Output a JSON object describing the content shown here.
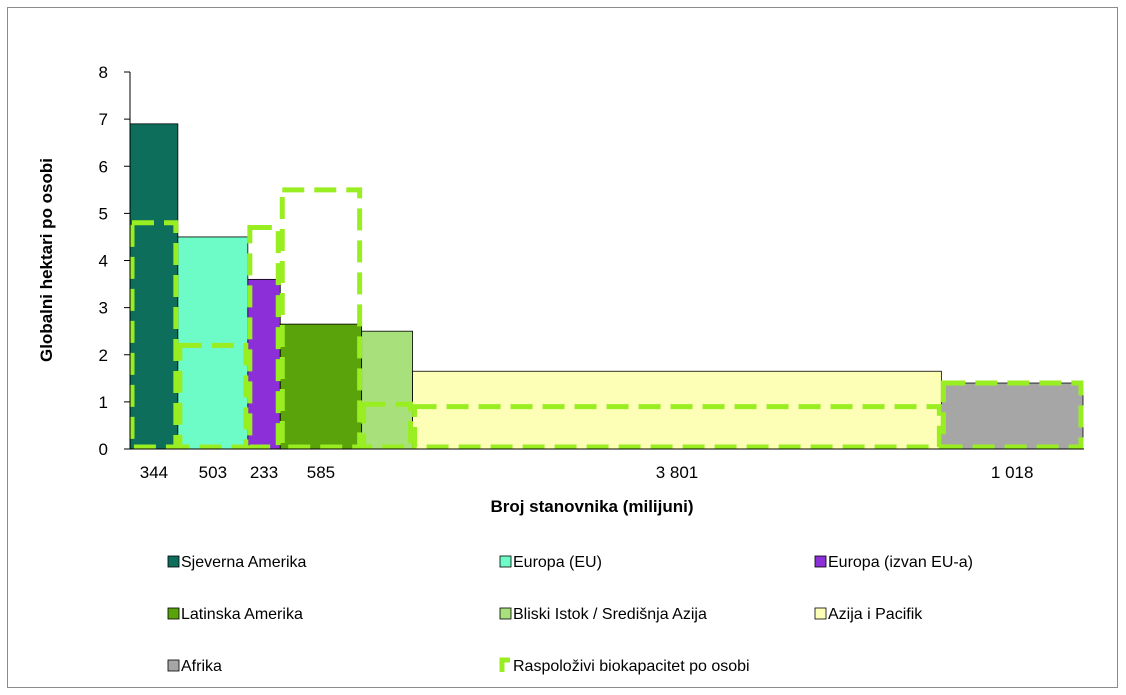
{
  "chart_data": {
    "type": "bar",
    "subtype": "variable-width",
    "ylabel": "Globalni hektari po osobi",
    "xlabel": "Broj stanovnika (milijuni)",
    "ylim": [
      0,
      8
    ],
    "yticks": [
      "0",
      "1",
      "2",
      "3",
      "4",
      "5",
      "6",
      "7",
      "8"
    ],
    "grid": false,
    "legend_position": "bottom",
    "series": [
      {
        "name": "Sjeverna Amerika",
        "population": 344,
        "population_label": "344",
        "footprint": 6.9,
        "biocapacity": 4.8,
        "color": "#0d6e5c"
      },
      {
        "name": "Europa (EU)",
        "population": 503,
        "population_label": "503",
        "footprint": 4.5,
        "biocapacity": 2.2,
        "color": "#6dfcc8"
      },
      {
        "name": "Europa (izvan EU-a)",
        "population": 233,
        "population_label": "233",
        "footprint": 3.6,
        "biocapacity": 4.7,
        "color": "#8c2fd9"
      },
      {
        "name": "Latinska Amerika",
        "population": 585,
        "population_label": "585",
        "footprint": 2.65,
        "biocapacity": 5.5,
        "color": "#5aa30a"
      },
      {
        "name": "Bliski Istok / Središnja Azija",
        "population": 366,
        "population_label": "",
        "footprint": 2.5,
        "biocapacity": 0.95,
        "color": "#a8e07c"
      },
      {
        "name": "Azija i Pacifik",
        "population": 3801,
        "population_label": "3 801",
        "footprint": 1.65,
        "biocapacity": 0.9,
        "color": "#fdffb6"
      },
      {
        "name": "Afrika",
        "population": 1018,
        "population_label": "1 018",
        "footprint": 1.4,
        "biocapacity": 1.4,
        "color": "#a6a6a6"
      }
    ],
    "biocapacity_series_name": "Raspoloživi biokapacitet po osobi",
    "biocapacity_color": "#99ee22"
  }
}
